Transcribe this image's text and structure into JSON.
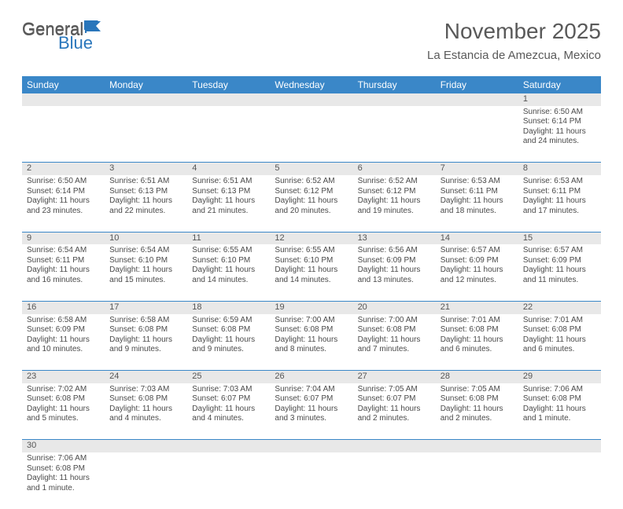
{
  "logo": {
    "text1": "General",
    "text2": "Blue",
    "text_color1": "#5a5a5a",
    "text_color2": "#2976bb",
    "shape_color": "#2976bb"
  },
  "title": "November 2025",
  "location": "La Estancia de Amezcua, Mexico",
  "colors": {
    "header_bg": "#3a87c8",
    "header_fg": "#ffffff",
    "daynum_bg": "#e8e8e8",
    "row_border": "#3a87c8"
  },
  "weekdays": [
    "Sunday",
    "Monday",
    "Tuesday",
    "Wednesday",
    "Thursday",
    "Friday",
    "Saturday"
  ],
  "rows": [
    [
      {
        "n": "",
        "l": [
          "",
          "",
          "",
          ""
        ]
      },
      {
        "n": "",
        "l": [
          "",
          "",
          "",
          ""
        ]
      },
      {
        "n": "",
        "l": [
          "",
          "",
          "",
          ""
        ]
      },
      {
        "n": "",
        "l": [
          "",
          "",
          "",
          ""
        ]
      },
      {
        "n": "",
        "l": [
          "",
          "",
          "",
          ""
        ]
      },
      {
        "n": "",
        "l": [
          "",
          "",
          "",
          ""
        ]
      },
      {
        "n": "1",
        "l": [
          "Sunrise: 6:50 AM",
          "Sunset: 6:14 PM",
          "Daylight: 11 hours",
          "and 24 minutes."
        ]
      }
    ],
    [
      {
        "n": "2",
        "l": [
          "Sunrise: 6:50 AM",
          "Sunset: 6:14 PM",
          "Daylight: 11 hours",
          "and 23 minutes."
        ]
      },
      {
        "n": "3",
        "l": [
          "Sunrise: 6:51 AM",
          "Sunset: 6:13 PM",
          "Daylight: 11 hours",
          "and 22 minutes."
        ]
      },
      {
        "n": "4",
        "l": [
          "Sunrise: 6:51 AM",
          "Sunset: 6:13 PM",
          "Daylight: 11 hours",
          "and 21 minutes."
        ]
      },
      {
        "n": "5",
        "l": [
          "Sunrise: 6:52 AM",
          "Sunset: 6:12 PM",
          "Daylight: 11 hours",
          "and 20 minutes."
        ]
      },
      {
        "n": "6",
        "l": [
          "Sunrise: 6:52 AM",
          "Sunset: 6:12 PM",
          "Daylight: 11 hours",
          "and 19 minutes."
        ]
      },
      {
        "n": "7",
        "l": [
          "Sunrise: 6:53 AM",
          "Sunset: 6:11 PM",
          "Daylight: 11 hours",
          "and 18 minutes."
        ]
      },
      {
        "n": "8",
        "l": [
          "Sunrise: 6:53 AM",
          "Sunset: 6:11 PM",
          "Daylight: 11 hours",
          "and 17 minutes."
        ]
      }
    ],
    [
      {
        "n": "9",
        "l": [
          "Sunrise: 6:54 AM",
          "Sunset: 6:11 PM",
          "Daylight: 11 hours",
          "and 16 minutes."
        ]
      },
      {
        "n": "10",
        "l": [
          "Sunrise: 6:54 AM",
          "Sunset: 6:10 PM",
          "Daylight: 11 hours",
          "and 15 minutes."
        ]
      },
      {
        "n": "11",
        "l": [
          "Sunrise: 6:55 AM",
          "Sunset: 6:10 PM",
          "Daylight: 11 hours",
          "and 14 minutes."
        ]
      },
      {
        "n": "12",
        "l": [
          "Sunrise: 6:55 AM",
          "Sunset: 6:10 PM",
          "Daylight: 11 hours",
          "and 14 minutes."
        ]
      },
      {
        "n": "13",
        "l": [
          "Sunrise: 6:56 AM",
          "Sunset: 6:09 PM",
          "Daylight: 11 hours",
          "and 13 minutes."
        ]
      },
      {
        "n": "14",
        "l": [
          "Sunrise: 6:57 AM",
          "Sunset: 6:09 PM",
          "Daylight: 11 hours",
          "and 12 minutes."
        ]
      },
      {
        "n": "15",
        "l": [
          "Sunrise: 6:57 AM",
          "Sunset: 6:09 PM",
          "Daylight: 11 hours",
          "and 11 minutes."
        ]
      }
    ],
    [
      {
        "n": "16",
        "l": [
          "Sunrise: 6:58 AM",
          "Sunset: 6:09 PM",
          "Daylight: 11 hours",
          "and 10 minutes."
        ]
      },
      {
        "n": "17",
        "l": [
          "Sunrise: 6:58 AM",
          "Sunset: 6:08 PM",
          "Daylight: 11 hours",
          "and 9 minutes."
        ]
      },
      {
        "n": "18",
        "l": [
          "Sunrise: 6:59 AM",
          "Sunset: 6:08 PM",
          "Daylight: 11 hours",
          "and 9 minutes."
        ]
      },
      {
        "n": "19",
        "l": [
          "Sunrise: 7:00 AM",
          "Sunset: 6:08 PM",
          "Daylight: 11 hours",
          "and 8 minutes."
        ]
      },
      {
        "n": "20",
        "l": [
          "Sunrise: 7:00 AM",
          "Sunset: 6:08 PM",
          "Daylight: 11 hours",
          "and 7 minutes."
        ]
      },
      {
        "n": "21",
        "l": [
          "Sunrise: 7:01 AM",
          "Sunset: 6:08 PM",
          "Daylight: 11 hours",
          "and 6 minutes."
        ]
      },
      {
        "n": "22",
        "l": [
          "Sunrise: 7:01 AM",
          "Sunset: 6:08 PM",
          "Daylight: 11 hours",
          "and 6 minutes."
        ]
      }
    ],
    [
      {
        "n": "23",
        "l": [
          "Sunrise: 7:02 AM",
          "Sunset: 6:08 PM",
          "Daylight: 11 hours",
          "and 5 minutes."
        ]
      },
      {
        "n": "24",
        "l": [
          "Sunrise: 7:03 AM",
          "Sunset: 6:08 PM",
          "Daylight: 11 hours",
          "and 4 minutes."
        ]
      },
      {
        "n": "25",
        "l": [
          "Sunrise: 7:03 AM",
          "Sunset: 6:07 PM",
          "Daylight: 11 hours",
          "and 4 minutes."
        ]
      },
      {
        "n": "26",
        "l": [
          "Sunrise: 7:04 AM",
          "Sunset: 6:07 PM",
          "Daylight: 11 hours",
          "and 3 minutes."
        ]
      },
      {
        "n": "27",
        "l": [
          "Sunrise: 7:05 AM",
          "Sunset: 6:07 PM",
          "Daylight: 11 hours",
          "and 2 minutes."
        ]
      },
      {
        "n": "28",
        "l": [
          "Sunrise: 7:05 AM",
          "Sunset: 6:08 PM",
          "Daylight: 11 hours",
          "and 2 minutes."
        ]
      },
      {
        "n": "29",
        "l": [
          "Sunrise: 7:06 AM",
          "Sunset: 6:08 PM",
          "Daylight: 11 hours",
          "and 1 minute."
        ]
      }
    ],
    [
      {
        "n": "30",
        "l": [
          "Sunrise: 7:06 AM",
          "Sunset: 6:08 PM",
          "Daylight: 11 hours",
          "and 1 minute."
        ]
      },
      {
        "n": "",
        "l": [
          "",
          "",
          "",
          ""
        ]
      },
      {
        "n": "",
        "l": [
          "",
          "",
          "",
          ""
        ]
      },
      {
        "n": "",
        "l": [
          "",
          "",
          "",
          ""
        ]
      },
      {
        "n": "",
        "l": [
          "",
          "",
          "",
          ""
        ]
      },
      {
        "n": "",
        "l": [
          "",
          "",
          "",
          ""
        ]
      },
      {
        "n": "",
        "l": [
          "",
          "",
          "",
          ""
        ]
      }
    ]
  ]
}
